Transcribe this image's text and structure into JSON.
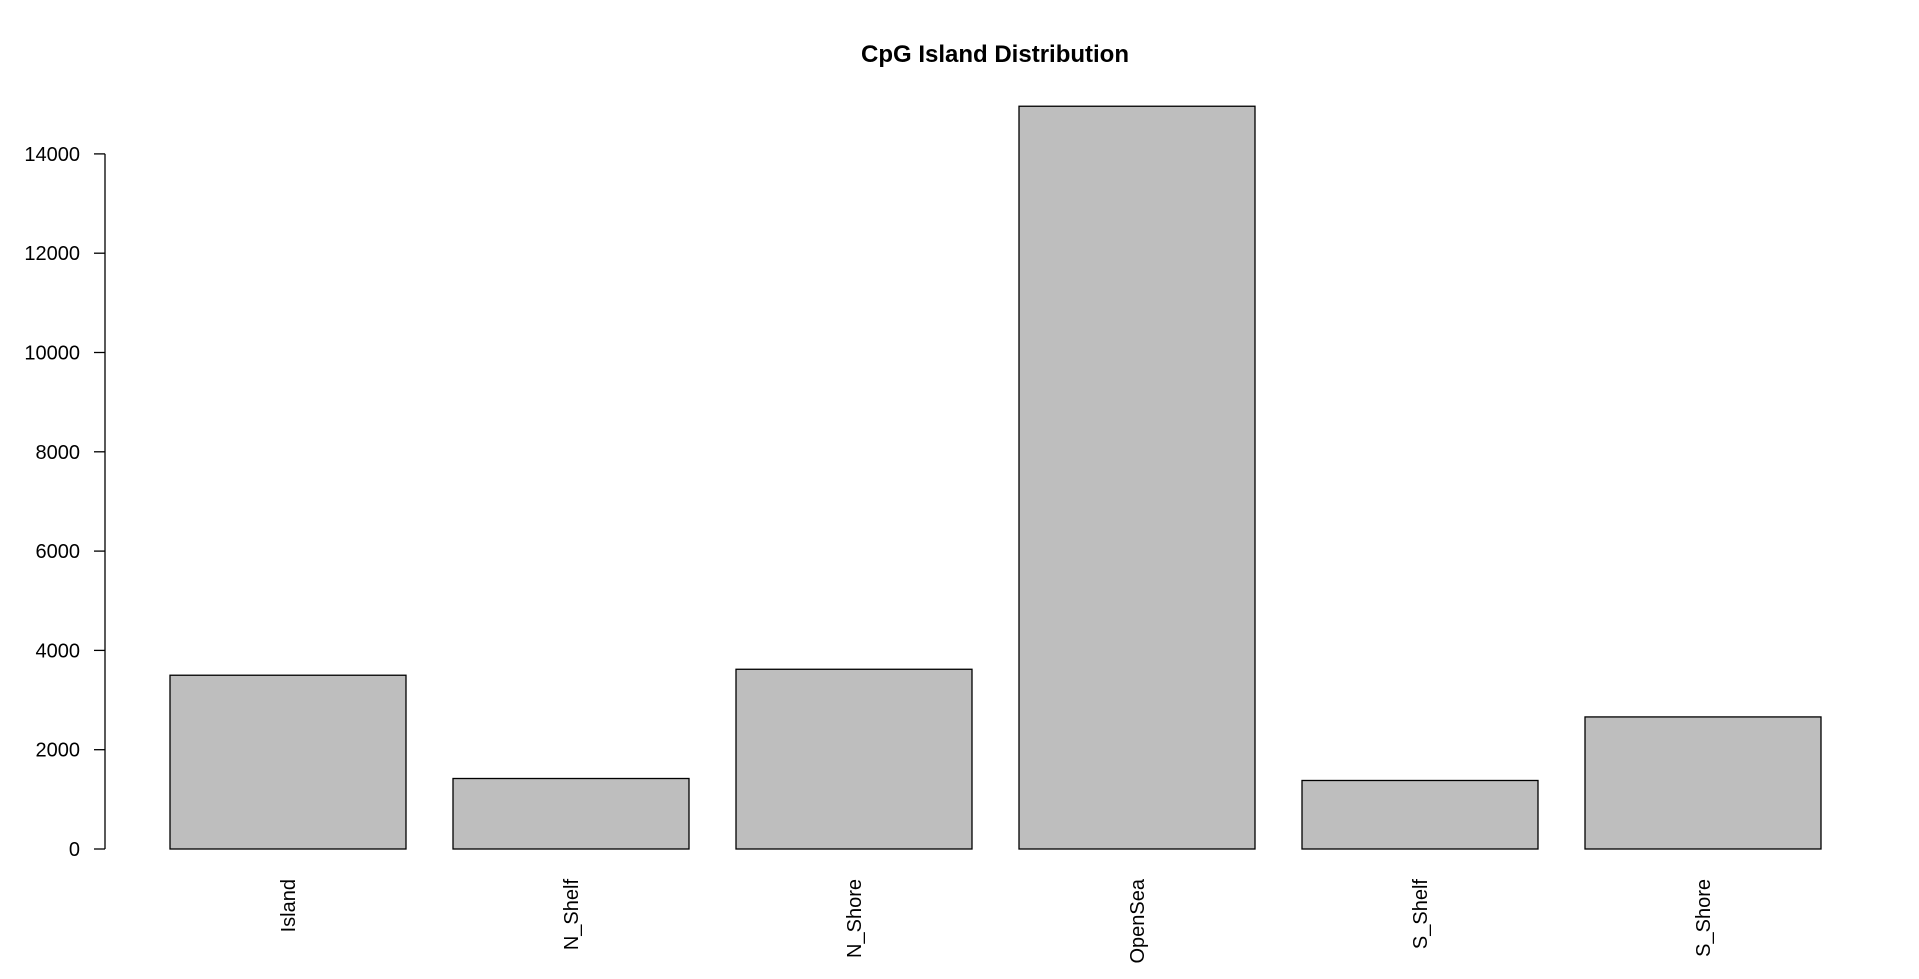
{
  "chart_data": {
    "type": "bar",
    "title": "CpG Island Distribution",
    "xlabel": "",
    "ylabel": "",
    "categories": [
      "Island",
      "N_Shelf",
      "N_Shore",
      "OpenSea",
      "S_Shelf",
      "S_Shore"
    ],
    "values": [
      3500,
      1420,
      3620,
      14960,
      1380,
      2660
    ],
    "ylim": [
      0,
      14000
    ],
    "yticks": [
      0,
      2000,
      4000,
      6000,
      8000,
      10000,
      12000,
      14000
    ],
    "ytick_labels": [
      "0",
      "2000",
      "4000",
      "6000",
      "8000",
      "10000",
      "12000",
      "14000"
    ],
    "bar_color": "#bebebe",
    "grid": false,
    "legend": "none"
  }
}
